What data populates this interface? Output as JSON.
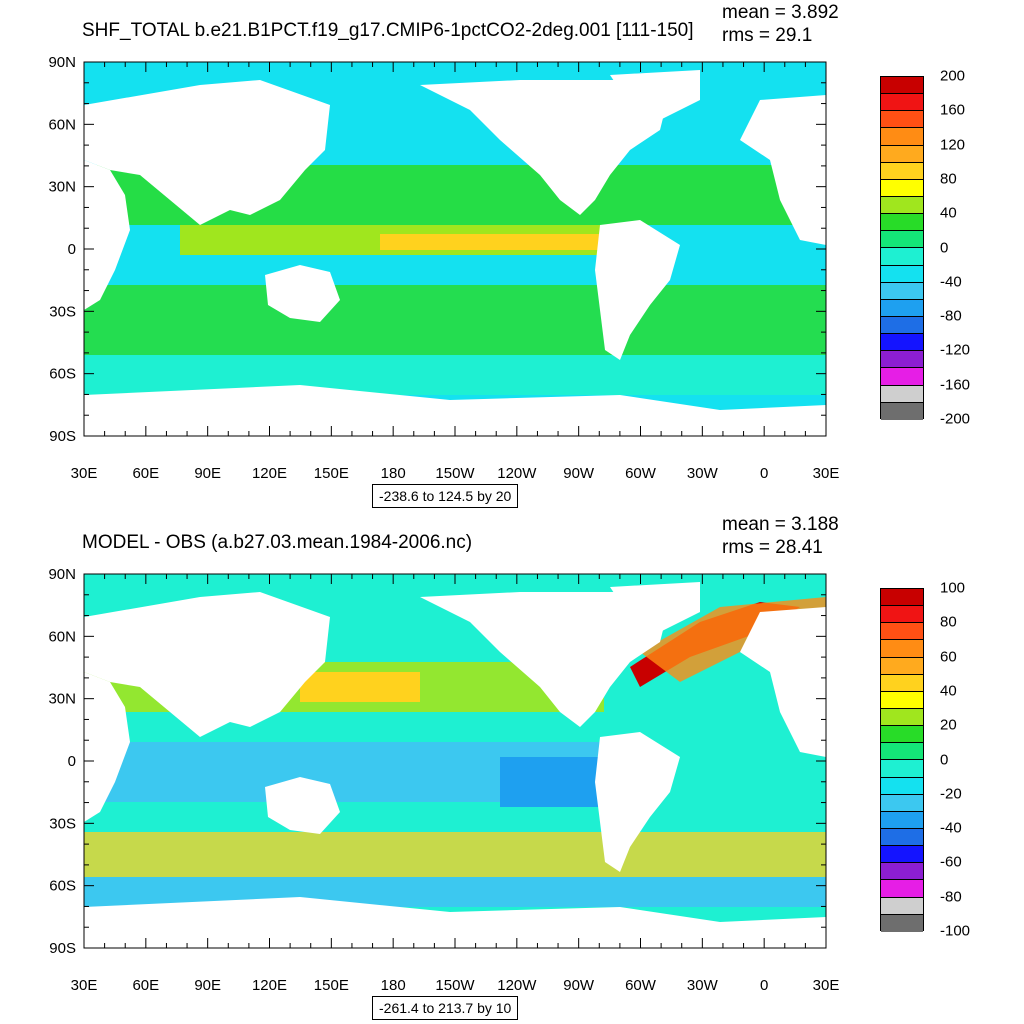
{
  "panels": [
    {
      "id": "top",
      "title": "SHF_TOTAL b.e21.B1PCT.f19_g17.CMIP6-1pctCO2-2deg.001 [111-150]",
      "mean_text": "mean = 3.892",
      "rms_text": "rms = 29.1",
      "range_text": "-238.6 to 124.5 by 20",
      "colorbar_labels": [
        "200",
        "160",
        "120",
        "80",
        "40",
        "0",
        "-40",
        "-80",
        "-120",
        "-160",
        "-200"
      ]
    },
    {
      "id": "bottom",
      "title": "MODEL - OBS (a.b27.03.mean.1984-2006.nc)",
      "mean_text": "mean = 3.188",
      "rms_text": "rms = 28.41",
      "range_text": "-261.4 to 213.7 by 10",
      "colorbar_labels": [
        "100",
        "80",
        "60",
        "40",
        "20",
        "0",
        "-20",
        "-40",
        "-60",
        "-80",
        "-100"
      ]
    }
  ],
  "axes": {
    "lat_labels": [
      "90N",
      "60N",
      "30N",
      "0",
      "30S",
      "60S",
      "90S"
    ],
    "lon_labels": [
      "30E",
      "60E",
      "90E",
      "120E",
      "150E",
      "180",
      "150W",
      "120W",
      "90W",
      "60W",
      "30W",
      "0",
      "30E"
    ]
  },
  "colors": {
    "palette": [
      "#6e6e6e",
      "#cfcfcf",
      "#e61ee6",
      "#8c1ed2",
      "#1414ff",
      "#1e6ee6",
      "#1ea0f0",
      "#3cc8f0",
      "#14e1f0",
      "#1ef0d2",
      "#14e678",
      "#28dc28",
      "#a0e61e",
      "#ffff00",
      "#ffd21e",
      "#ffaa1e",
      "#ff8c14",
      "#ff5014",
      "#f01414",
      "#c80000"
    ],
    "land": "#ffffff"
  }
}
